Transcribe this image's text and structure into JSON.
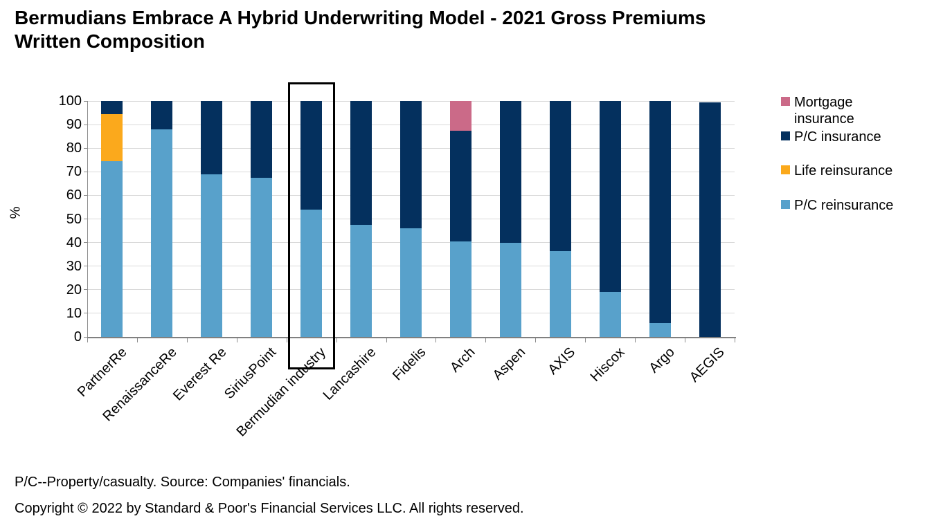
{
  "header": {
    "title_line1": "Bermudians Embrace A Hybrid Underwriting Model - 2021 Gross Premiums",
    "title_line2": "Written Composition"
  },
  "footnote": "P/C--Property/casualty. Source: Companies' financials.",
  "copyright": "Copyright © 2022 by Standard & Poor's Financial Services LLC. All rights reserved.",
  "chart_data": {
    "type": "bar",
    "stacked": true,
    "title": "Bermudians Embrace A Hybrid Underwriting Model - 2021 Gross Premiums Written Composition",
    "xlabel": "",
    "ylabel": "%",
    "ylim": [
      0,
      100
    ],
    "yticks": [
      0,
      10,
      20,
      30,
      40,
      50,
      60,
      70,
      80,
      90,
      100
    ],
    "grid": true,
    "legend_position": "right",
    "highlighted_category": "Bermudian industry",
    "categories": [
      "PartnerRe",
      "RenaissanceRe",
      "Everest Re",
      "SiriusPoint",
      "Bermudian industry",
      "Lancashire",
      "Fidelis",
      "Arch",
      "Aspen",
      "AXIS",
      "Hiscox",
      "Argo",
      "AEGIS"
    ],
    "series": [
      {
        "name": "P/C reinsurance",
        "color": "#58A1CB",
        "values": [
          74.5,
          88,
          69,
          67.5,
          54,
          47.5,
          46,
          40.5,
          40,
          36.5,
          19,
          6,
          0
        ]
      },
      {
        "name": "Life reinsurance",
        "color": "#FBA91C",
        "values": [
          20,
          0,
          0,
          0,
          0,
          0,
          0,
          0,
          0,
          0,
          0,
          0,
          0
        ]
      },
      {
        "name": "P/C insurance",
        "color": "#04305E",
        "values": [
          5.5,
          12,
          31,
          32.5,
          46,
          52.5,
          54,
          47,
          60,
          63.5,
          81,
          94,
          99.5
        ]
      },
      {
        "name": "Mortgage insurance",
        "color": "#CB6A88",
        "values": [
          0,
          0,
          0,
          0,
          0,
          0,
          0,
          12.5,
          0,
          0,
          0,
          0,
          0
        ]
      }
    ],
    "legend": [
      {
        "lines": [
          "Mortgage",
          "insurance"
        ],
        "color": "#CB6A88"
      },
      {
        "lines": [
          "P/C insurance"
        ],
        "color": "#04305E"
      },
      {
        "lines": [
          "Life reinsurance"
        ],
        "color": "#FBA91C"
      },
      {
        "lines": [
          "P/C reinsurance"
        ],
        "color": "#58A1CB"
      }
    ],
    "colors": {
      "gridline": "#D9D9D9",
      "axis": "#808080",
      "text": "#000000"
    }
  }
}
